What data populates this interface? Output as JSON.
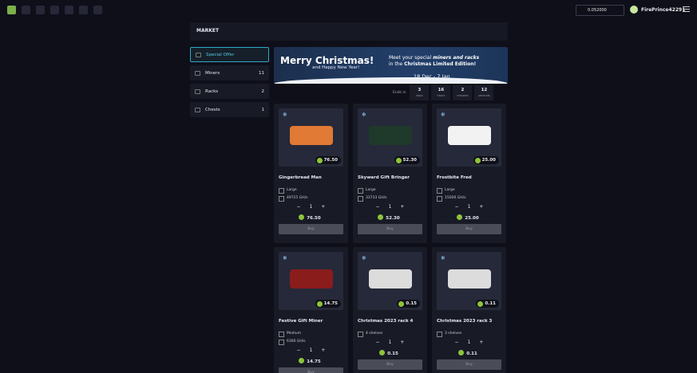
{
  "top_bar": {
    "balance": "0.052000",
    "username": "FirePrince42291"
  },
  "header": {
    "title": "MARKET"
  },
  "sidebar": {
    "items": [
      {
        "label": "Special Offer"
      },
      {
        "label": "Miners",
        "count": 11
      },
      {
        "label": "Racks",
        "count": 2
      },
      {
        "label": "Chests",
        "count": 1
      }
    ]
  },
  "banner": {
    "title": "Merry Christmas!",
    "subtitle": "and Happy New Year!",
    "text": [
      "Meet your special ",
      "miners and racks",
      "in the ",
      "Christmas Limited Edition!"
    ],
    "dates": "18 Dec - 7 Jan"
  },
  "timer": {
    "label": "Ends in",
    "units": [
      {
        "value": 3,
        "unit": "days"
      },
      {
        "value": 16,
        "unit": "hours"
      },
      {
        "value": 2,
        "unit": "minutes"
      },
      {
        "value": 12,
        "unit": "seconds"
      }
    ]
  },
  "products": [
    {
      "name": "Gingerbread Man",
      "price": "76.50",
      "specs": [
        "Large",
        "49725 GH/s"
      ],
      "quantity": 1,
      "button": "Buy"
    },
    {
      "name": "Skyward Gift Bringer",
      "price": "52.30",
      "specs": [
        "Large",
        "33733 GH/s"
      ],
      "quantity": 1,
      "button": "Buy"
    },
    {
      "name": "Frostbite Fred",
      "price": "25.00",
      "specs": [
        "Large",
        "15000 GH/s"
      ],
      "quantity": 1,
      "button": "Buy"
    },
    {
      "name": "Festive Gift Miner",
      "price": "14.75",
      "specs": [
        "Medium",
        "6366 GH/s"
      ],
      "quantity": 1,
      "button": "Buy"
    },
    {
      "name": "Christmas 2023 rack 4",
      "price": "0.15",
      "specs": [
        "4 shelves"
      ],
      "quantity": 1,
      "button": "Buy"
    },
    {
      "name": "Christmas 2023 rack 3",
      "price": "0.11",
      "specs": [
        "3 shelves"
      ],
      "quantity": 1,
      "button": "Buy"
    }
  ]
}
